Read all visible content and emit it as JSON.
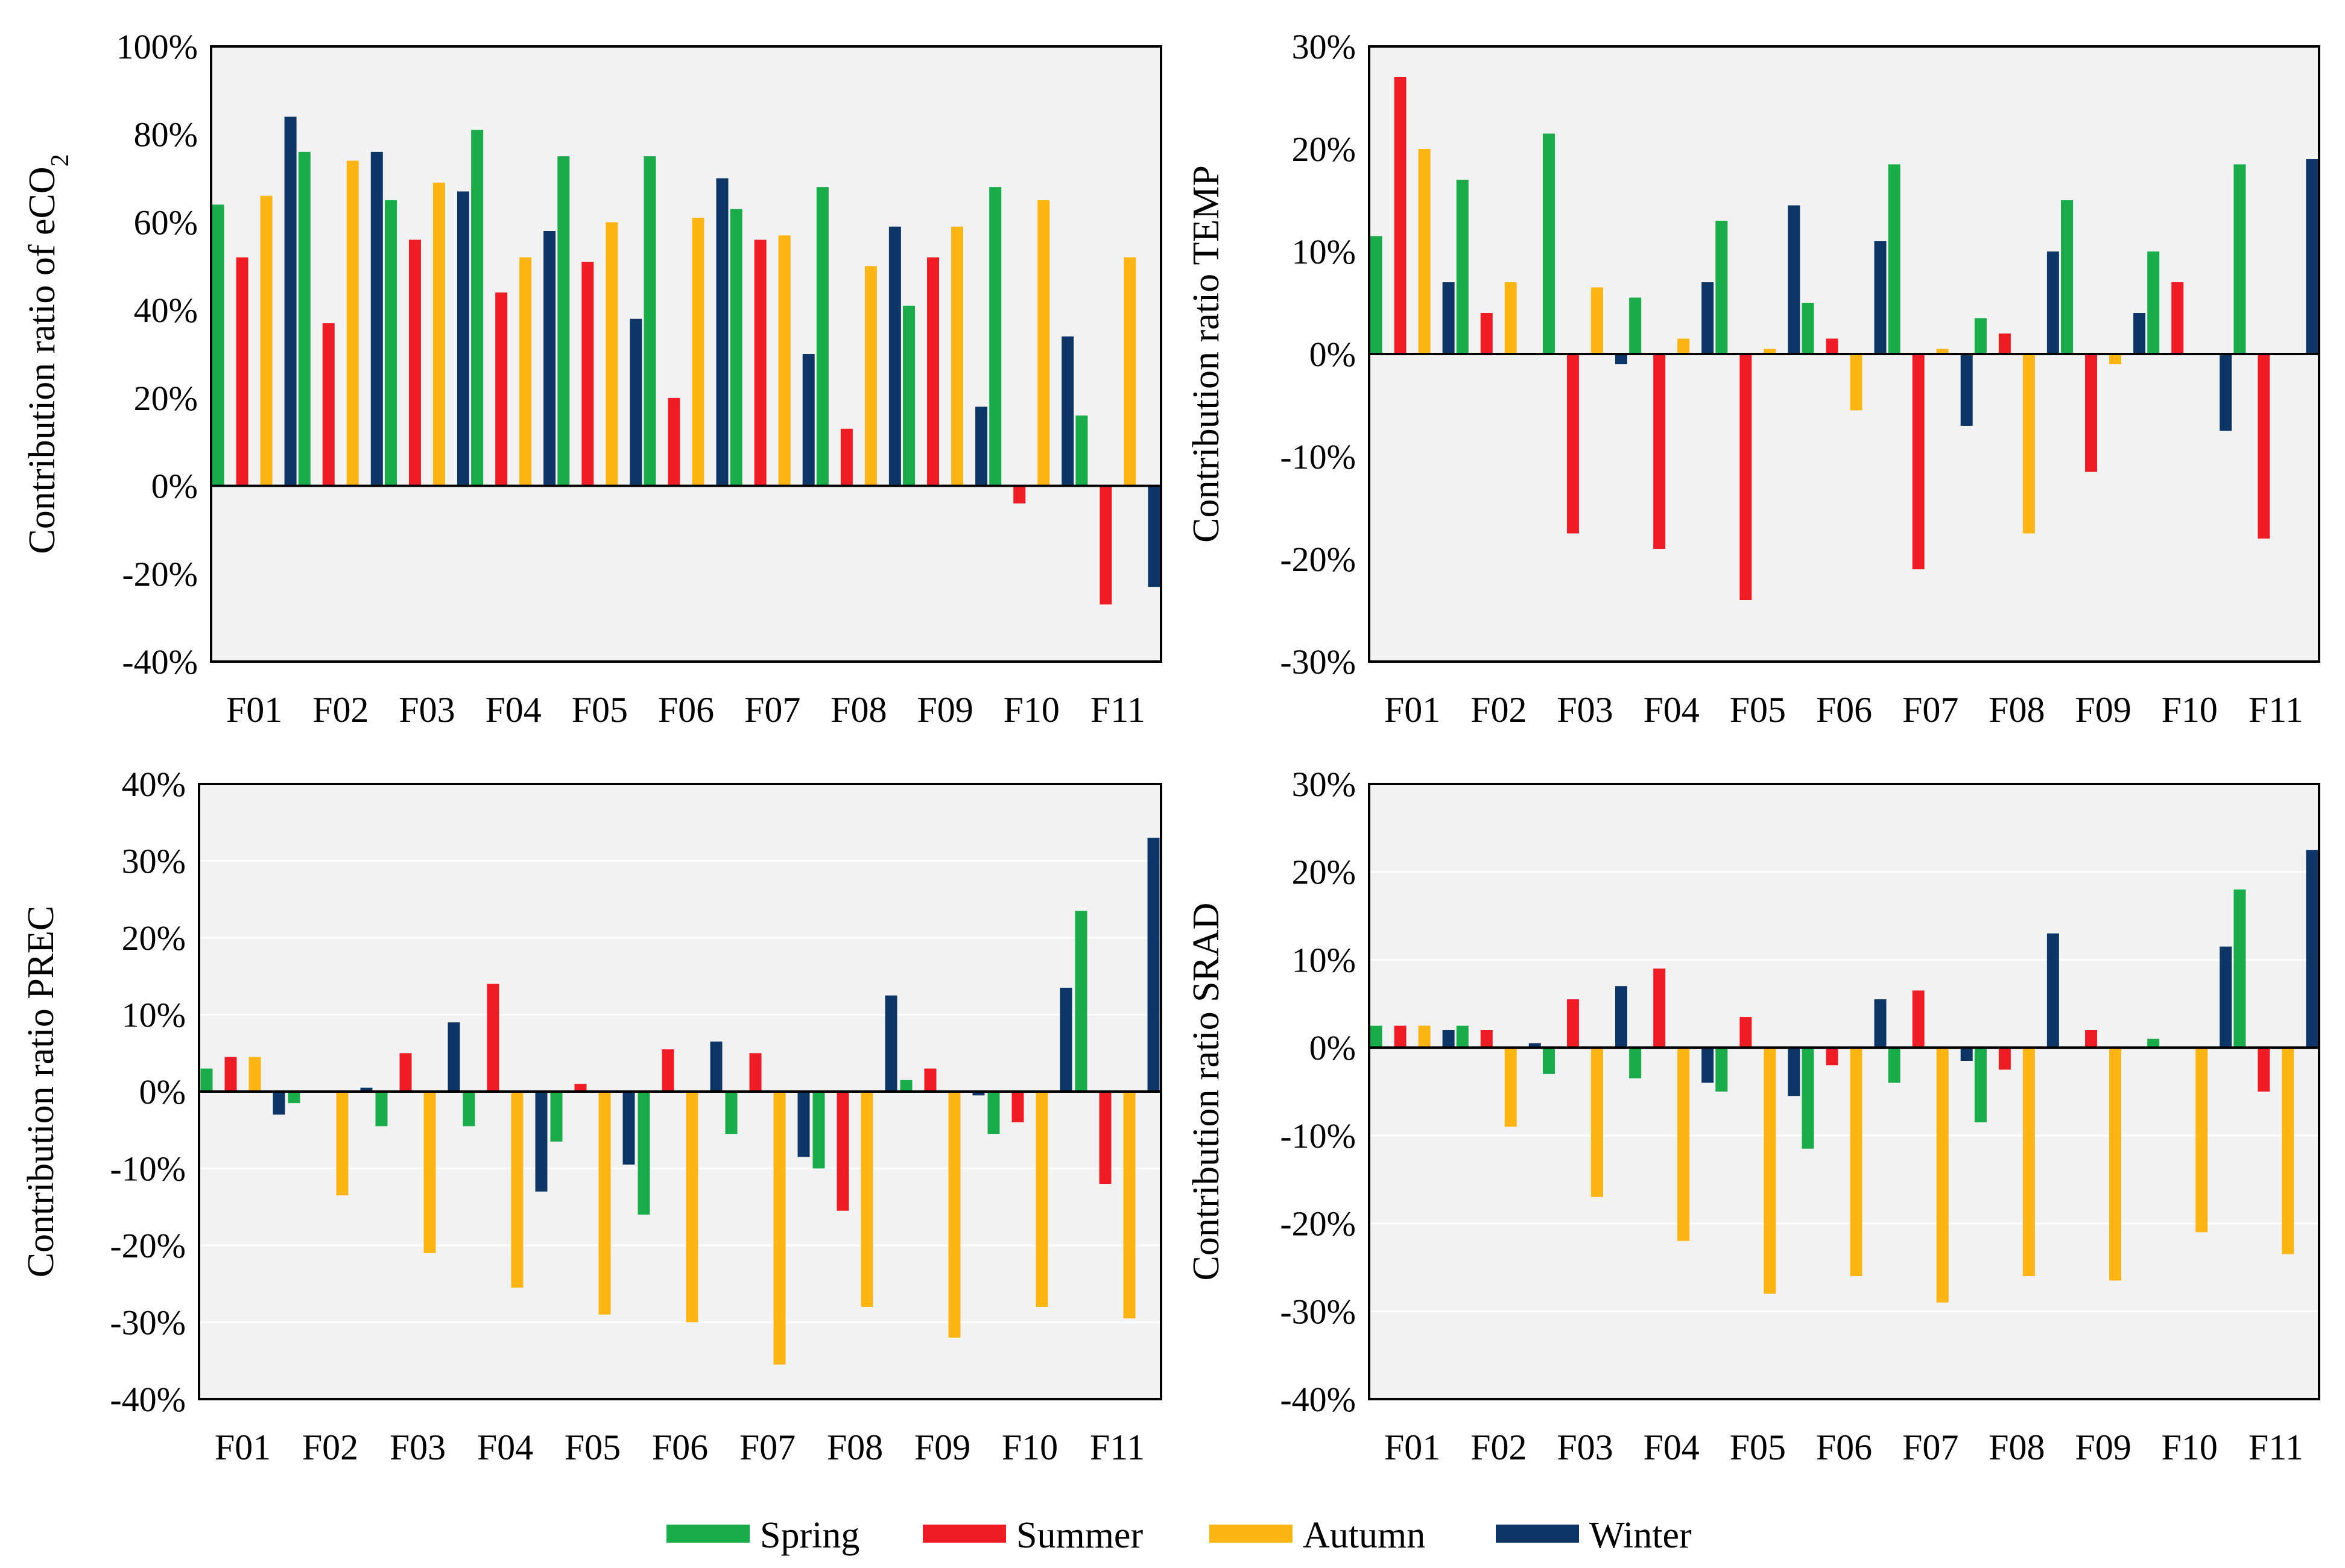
{
  "chart_data": [
    {
      "type": "bar",
      "ylabel": "Contribution ratio of eCO",
      "ylabel_sub": "2",
      "ylim": [
        -40,
        100
      ],
      "yticks": [
        -40,
        -20,
        0,
        20,
        40,
        60,
        80,
        100
      ],
      "ytick_labels": [
        "-40%",
        "-20%",
        "0%",
        "20%",
        "40%",
        "60%",
        "80%",
        "100%"
      ],
      "grid": false,
      "categories": [
        "F01",
        "F02",
        "F03",
        "F04",
        "F05",
        "F06",
        "F07",
        "F08",
        "F09",
        "F10",
        "F11"
      ],
      "series": [
        {
          "name": "Spring",
          "values": [
            64,
            76,
            65,
            81,
            75,
            75,
            63,
            68,
            41,
            68,
            16
          ]
        },
        {
          "name": "Summer",
          "values": [
            52,
            37,
            56,
            44,
            51,
            20,
            56,
            13,
            52,
            -4,
            -27
          ]
        },
        {
          "name": "Autumn",
          "values": [
            66,
            74,
            69,
            52,
            60,
            61,
            57,
            50,
            59,
            65,
            52
          ]
        },
        {
          "name": "Winter",
          "values": [
            84,
            76,
            67,
            58,
            38,
            70,
            30,
            59,
            18,
            34,
            -23
          ]
        }
      ]
    },
    {
      "type": "bar",
      "ylabel": "Contribution ratio TEMP",
      "ylim": [
        -30,
        30
      ],
      "yticks": [
        -30,
        -20,
        -10,
        0,
        10,
        20,
        30
      ],
      "ytick_labels": [
        "-30%",
        "-20%",
        "-10%",
        "0%",
        "10%",
        "20%",
        "30%"
      ],
      "grid": false,
      "categories": [
        "F01",
        "F02",
        "F03",
        "F04",
        "F05",
        "F06",
        "F07",
        "F08",
        "F09",
        "F10",
        "F11"
      ],
      "series": [
        {
          "name": "Spring",
          "values": [
            11.5,
            17,
            21.5,
            5.5,
            13,
            5,
            18.5,
            3.5,
            15,
            10,
            18.5
          ]
        },
        {
          "name": "Summer",
          "values": [
            27,
            4,
            -17.5,
            -19,
            -24,
            1.5,
            -21,
            2,
            -11.5,
            7,
            -18
          ]
        },
        {
          "name": "Autumn",
          "values": [
            20,
            7,
            6.5,
            1.5,
            0.5,
            -5.5,
            0.5,
            -17.5,
            -1,
            0,
            0
          ]
        },
        {
          "name": "Winter",
          "values": [
            7,
            0,
            -1,
            7,
            14.5,
            11,
            -7,
            10,
            4,
            -7.5,
            19
          ]
        }
      ]
    },
    {
      "type": "bar",
      "ylabel": "Contribution ratio PREC",
      "ylim": [
        -40,
        40
      ],
      "yticks": [
        -40,
        -30,
        -20,
        -10,
        0,
        10,
        20,
        30,
        40
      ],
      "ytick_labels": [
        "-40%",
        "-30%",
        "-20%",
        "-10%",
        "0%",
        "10%",
        "20%",
        "30%",
        "40%"
      ],
      "grid": true,
      "categories": [
        "F01",
        "F02",
        "F03",
        "F04",
        "F05",
        "F06",
        "F07",
        "F08",
        "F09",
        "F10",
        "F11"
      ],
      "series": [
        {
          "name": "Spring",
          "values": [
            3,
            -1.5,
            -4.5,
            -4.5,
            -6.5,
            -16,
            -5.5,
            -10,
            1.5,
            -5.5,
            23.5
          ]
        },
        {
          "name": "Summer",
          "values": [
            4.5,
            0,
            5,
            14,
            1,
            5.5,
            5,
            -15.5,
            3,
            -4,
            -12
          ]
        },
        {
          "name": "Autumn",
          "values": [
            4.5,
            -13.5,
            -21,
            -25.5,
            -29,
            -30,
            -35.5,
            -28,
            -32,
            -28,
            -29.5
          ]
        },
        {
          "name": "Winter",
          "values": [
            -3,
            0.5,
            9,
            -13,
            -9.5,
            6.5,
            -8.5,
            12.5,
            -0.5,
            13.5,
            33
          ]
        }
      ]
    },
    {
      "type": "bar",
      "ylabel": "Contribution ratio SRAD",
      "ylim": [
        -40,
        30
      ],
      "yticks": [
        -40,
        -30,
        -20,
        -10,
        0,
        10,
        20,
        30
      ],
      "ytick_labels": [
        "-40%",
        "-30%",
        "-20%",
        "-10%",
        "0%",
        "10%",
        "20%",
        "30%"
      ],
      "grid": true,
      "categories": [
        "F01",
        "F02",
        "F03",
        "F04",
        "F05",
        "F06",
        "F07",
        "F08",
        "F09",
        "F10",
        "F11"
      ],
      "series": [
        {
          "name": "Spring",
          "values": [
            2.5,
            2.5,
            -3,
            -3.5,
            -5,
            -11.5,
            -4,
            -8.5,
            0,
            1,
            18
          ]
        },
        {
          "name": "Summer",
          "values": [
            2.5,
            2,
            5.5,
            9,
            3.5,
            -2,
            6.5,
            -2.5,
            2,
            0,
            -5
          ]
        },
        {
          "name": "Autumn",
          "values": [
            2.5,
            -9,
            -17,
            -22,
            -28,
            -26,
            -29,
            -26,
            -26.5,
            -21,
            -23.5
          ]
        },
        {
          "name": "Winter",
          "values": [
            2,
            0.5,
            7,
            -4,
            -5.5,
            5.5,
            -1.5,
            13,
            0,
            11.5,
            22.5
          ]
        }
      ]
    }
  ],
  "legend": {
    "position": "bottom",
    "items": [
      {
        "name": "Spring",
        "color": "#1aab4b"
      },
      {
        "name": "Summer",
        "color": "#ee1c24"
      },
      {
        "name": "Autumn",
        "color": "#fdb515"
      },
      {
        "name": "Winter",
        "color": "#0d3667"
      }
    ]
  },
  "colors": {
    "plot_background": "#f2f2f2",
    "grid": "#ffffff",
    "axis": "#000000"
  }
}
